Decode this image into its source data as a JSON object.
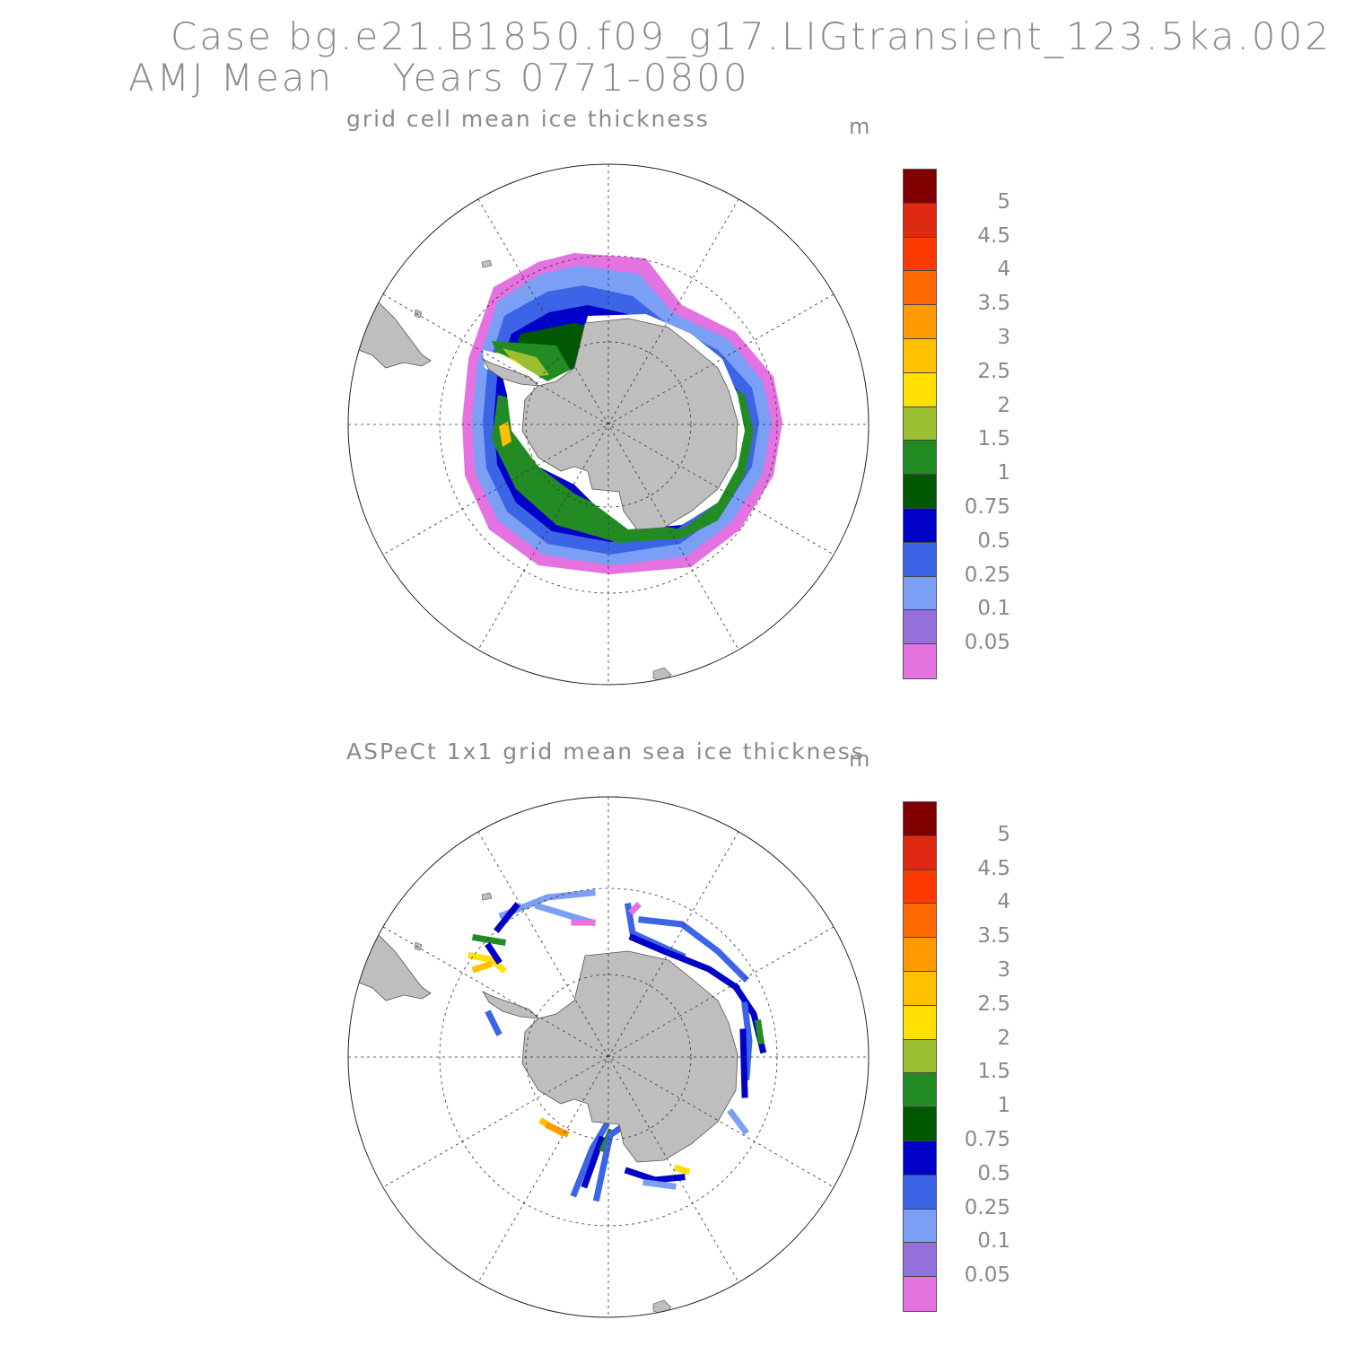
{
  "header": {
    "line1": "Case bg.e21.B1850.f09_g17.LIGtransient_123.5ka.002",
    "line2": "AMJ Mean    Years 0771-0800"
  },
  "panels": [
    {
      "title": "grid cell mean ice thickness",
      "unit": "m"
    },
    {
      "title": "ASPeCt 1x1 grid mean sea ice thickness",
      "unit": "m"
    }
  ],
  "colorbar": {
    "labels": [
      "5",
      "4.5",
      "4",
      "3.5",
      "3",
      "2.5",
      "2",
      "1.5",
      "1",
      "0.75",
      "0.5",
      "0.25",
      "0.1",
      "0.05"
    ],
    "colors": [
      "#800000",
      "#dd2a10",
      "#ff3a00",
      "#ff6a00",
      "#ff9a00",
      "#ffc000",
      "#ffe000",
      "#9abf30",
      "#238b23",
      "#005800",
      "#0000c8",
      "#3c64e6",
      "#7a9ff5",
      "#9370db",
      "#e472e0"
    ]
  },
  "chart_data": {
    "type": "heatmap",
    "projection": "south polar stereographic",
    "variable": "sea ice thickness",
    "units": "m",
    "levels": [
      0.05,
      0.1,
      0.25,
      0.5,
      0.75,
      1,
      1.5,
      2,
      2.5,
      3,
      3.5,
      4,
      4.5,
      5
    ]
  }
}
